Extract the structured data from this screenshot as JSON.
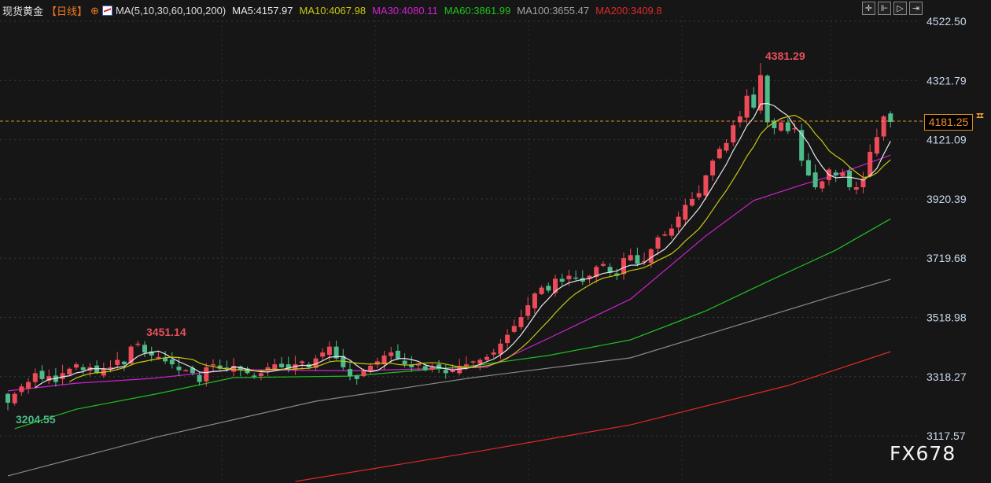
{
  "header": {
    "instrument": "现货黄金",
    "period": "【日线】",
    "crosshair_icon": "crosshair-circle-icon",
    "ma_icon": "ma-chart-icon",
    "ma_params": "MA(5,10,30,60,100,200)",
    "ma": [
      {
        "label": "MA5:4157.97",
        "color": "#e8e8e8"
      },
      {
        "label": "MA10:4067.98",
        "color": "#c8c810"
      },
      {
        "label": "MA30:4080.11",
        "color": "#d020d0"
      },
      {
        "label": "MA60:3861.99",
        "color": "#20c020"
      },
      {
        "label": "MA100:3655.47",
        "color": "#a0a0a0"
      },
      {
        "label": "MA200:3409.8",
        "color": "#e02828"
      }
    ]
  },
  "toolbar": [
    {
      "name": "crosshair-button",
      "icon": "✛"
    },
    {
      "name": "zoom-axis-button",
      "icon": "⊩"
    },
    {
      "name": "play-button",
      "icon": "▷"
    },
    {
      "name": "scroll-right-button",
      "icon": "⇥"
    }
  ],
  "watermark": "FX678",
  "chart_data": {
    "type": "candlestick",
    "yaxis": {
      "ticks": [
        "4522.50",
        "4321.79",
        "4121.09",
        "3920.39",
        "3719.68",
        "3518.98",
        "3318.27",
        "3117.57"
      ],
      "range": [
        3010,
        4580
      ]
    },
    "grid": true,
    "colors": {
      "up": "#ee4b5a",
      "down": "#4dbb8a"
    },
    "current_price": "4181.25",
    "annotations": {
      "high": {
        "label": "4381.29",
        "index": 110
      },
      "low": {
        "label": "3204.55",
        "index": 0
      }
    },
    "close": [
      3230,
      3260,
      3285,
      3300,
      3330,
      3310,
      3320,
      3300,
      3330,
      3345,
      3360,
      3340,
      3350,
      3330,
      3345,
      3350,
      3375,
      3360,
      3420,
      3430,
      3400,
      3390,
      3385,
      3370,
      3360,
      3340,
      3340,
      3330,
      3300,
      3350,
      3360,
      3345,
      3345,
      3355,
      3340,
      3330,
      3320,
      3330,
      3350,
      3360,
      3350,
      3345,
      3360,
      3370,
      3350,
      3380,
      3400,
      3420,
      3380,
      3350,
      3320,
      3310,
      3340,
      3355,
      3370,
      3390,
      3400,
      3380,
      3360,
      3350,
      3360,
      3340,
      3350,
      3345,
      3330,
      3340,
      3355,
      3360,
      3370,
      3375,
      3385,
      3400,
      3430,
      3460,
      3490,
      3520,
      3560,
      3600,
      3620,
      3610,
      3650,
      3640,
      3660,
      3650,
      3640,
      3660,
      3690,
      3700,
      3670,
      3660,
      3720,
      3730,
      3700,
      3710,
      3750,
      3790,
      3800,
      3820,
      3860,
      3900,
      3920,
      3940,
      4000,
      4050,
      4090,
      4110,
      4170,
      4200,
      4270,
      4230,
      4340,
      4180,
      4160,
      4180,
      4150,
      4160,
      4050,
      4000,
      3960,
      3980,
      4020,
      4000,
      4010,
      3960,
      3960,
      3990,
      4080,
      4130,
      4200,
      4181.25
    ],
    "ma_lines": [
      {
        "name": "MA30",
        "color": "#d020d0",
        "points": [
          [
            0,
            3270
          ],
          [
            10,
            3296
          ],
          [
            21,
            3312
          ],
          [
            33,
            3342
          ],
          [
            50,
            3338
          ],
          [
            70,
            3350
          ],
          [
            79,
            3448
          ],
          [
            91,
            3581
          ],
          [
            102,
            3795
          ],
          [
            109,
            3915
          ],
          [
            116,
            3968
          ],
          [
            121,
            4002
          ],
          [
            129,
            4069
          ]
        ]
      },
      {
        "name": "MA60",
        "color": "#20c020",
        "points": [
          [
            1,
            3142
          ],
          [
            10,
            3208
          ],
          [
            22,
            3261
          ],
          [
            33,
            3315
          ],
          [
            50,
            3320
          ],
          [
            68,
            3355
          ],
          [
            79,
            3390
          ],
          [
            91,
            3443
          ],
          [
            102,
            3541
          ],
          [
            111,
            3640
          ],
          [
            121,
            3747
          ],
          [
            129,
            3853
          ]
        ]
      },
      {
        "name": "MA100",
        "color": "#8a8a8a",
        "points": [
          [
            0,
            2982
          ],
          [
            22,
            3115
          ],
          [
            45,
            3235
          ],
          [
            68,
            3315
          ],
          [
            91,
            3382
          ],
          [
            108,
            3502
          ],
          [
            120,
            3587
          ],
          [
            129,
            3648
          ]
        ]
      },
      {
        "name": "MA200",
        "color": "#e02828",
        "points": [
          [
            42,
            2963
          ],
          [
            68,
            3062
          ],
          [
            91,
            3155
          ],
          [
            114,
            3288
          ],
          [
            129,
            3403
          ]
        ]
      }
    ]
  }
}
